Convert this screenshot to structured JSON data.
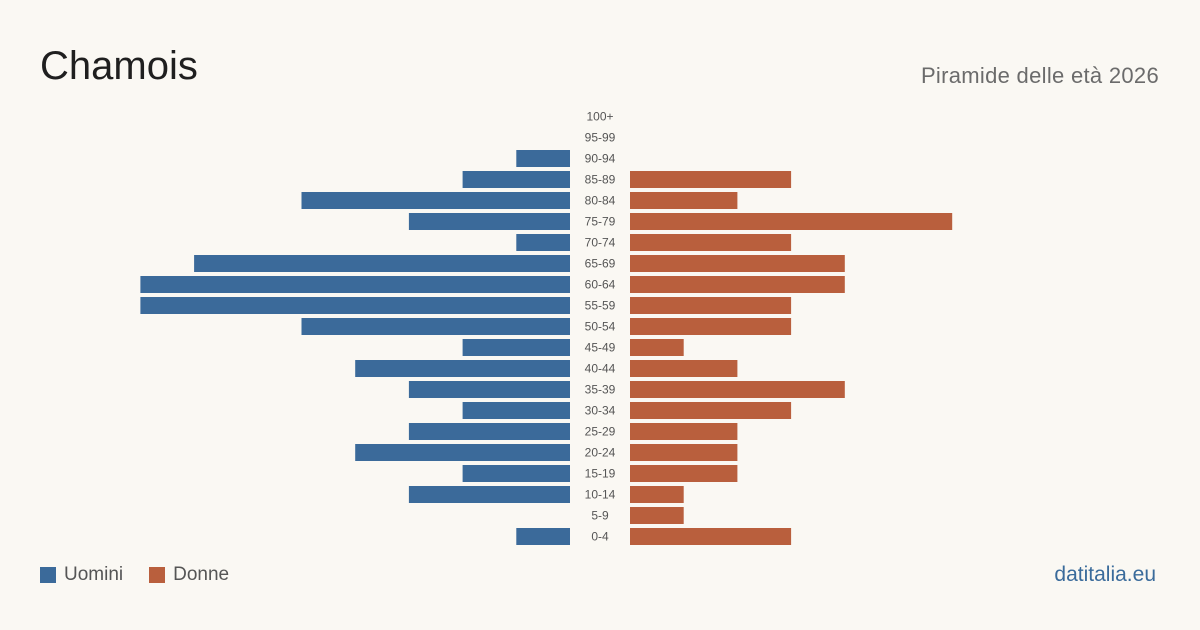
{
  "header": {
    "title": "Chamois",
    "subtitle": "Piramide delle età 2026"
  },
  "legend": {
    "men_label": "Uomini",
    "women_label": "Donne"
  },
  "brand": "datitalia.eu",
  "colors": {
    "men": "#3b6a9a",
    "women": "#b95f3d",
    "background": "#faf8f3",
    "label": "#555555"
  },
  "chart_data": {
    "type": "bar",
    "orientation": "horizontal-pyramid",
    "categories": [
      "100+",
      "95-99",
      "90-94",
      "85-89",
      "80-84",
      "75-79",
      "70-74",
      "65-69",
      "60-64",
      "55-59",
      "50-54",
      "45-49",
      "40-44",
      "35-39",
      "30-34",
      "25-29",
      "20-24",
      "15-19",
      "10-14",
      "5-9",
      "0-4"
    ],
    "series": [
      {
        "name": "Uomini",
        "values": [
          0,
          0,
          1,
          2,
          5,
          3,
          1,
          7,
          8,
          8,
          5,
          2,
          4,
          3,
          2,
          3,
          4,
          2,
          3,
          0,
          1
        ]
      },
      {
        "name": "Donne",
        "values": [
          0,
          0,
          0,
          3,
          2,
          6,
          3,
          4,
          4,
          3,
          3,
          1,
          2,
          4,
          3,
          2,
          2,
          2,
          1,
          1,
          3
        ]
      }
    ],
    "legend_position": "bottom-left",
    "grid": false
  }
}
